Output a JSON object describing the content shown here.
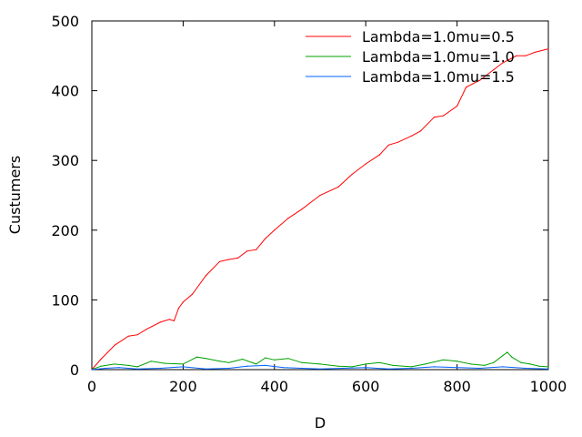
{
  "chart_data": {
    "type": "line",
    "title": "",
    "xlabel": "D",
    "ylabel": "Custumers",
    "xlim": [
      0,
      1000
    ],
    "ylim": [
      0,
      500
    ],
    "xticks": [
      0,
      200,
      400,
      600,
      800,
      1000
    ],
    "yticks": [
      0,
      100,
      200,
      300,
      400,
      500
    ],
    "grid": false,
    "legend_position": "top-right",
    "series": [
      {
        "name": "Lambda=1.0mu=0.5",
        "color": "#ff0000",
        "x": [
          0,
          20,
          50,
          80,
          100,
          120,
          150,
          170,
          180,
          190,
          200,
          220,
          250,
          280,
          300,
          320,
          340,
          360,
          380,
          400,
          430,
          460,
          500,
          540,
          570,
          600,
          630,
          650,
          670,
          700,
          720,
          750,
          770,
          800,
          820,
          850,
          880,
          900,
          930,
          950,
          970,
          1000
        ],
        "y": [
          0,
          15,
          35,
          48,
          50,
          58,
          68,
          72,
          70,
          88,
          97,
          108,
          135,
          155,
          158,
          160,
          170,
          172,
          188,
          200,
          217,
          230,
          250,
          262,
          280,
          295,
          308,
          322,
          326,
          335,
          342,
          362,
          364,
          378,
          405,
          415,
          430,
          440,
          450,
          450,
          455,
          460
        ]
      },
      {
        "name": "Lambda=1.0mu=1.0",
        "color": "#00a000",
        "x": [
          0,
          20,
          50,
          80,
          100,
          130,
          160,
          200,
          230,
          250,
          280,
          300,
          330,
          360,
          380,
          400,
          430,
          460,
          500,
          540,
          570,
          600,
          630,
          660,
          700,
          730,
          770,
          800,
          830,
          860,
          880,
          900,
          910,
          920,
          940,
          960,
          980,
          1000
        ],
        "y": [
          0,
          5,
          8,
          6,
          4,
          12,
          9,
          8,
          18,
          16,
          12,
          10,
          15,
          8,
          17,
          14,
          16,
          10,
          8,
          5,
          4,
          8,
          10,
          6,
          4,
          8,
          14,
          12,
          8,
          6,
          10,
          20,
          25,
          18,
          10,
          8,
          5,
          4
        ]
      },
      {
        "name": "Lambda=1.0mu=1.5",
        "color": "#0060ff",
        "x": [
          0,
          30,
          60,
          100,
          150,
          200,
          250,
          300,
          340,
          380,
          420,
          460,
          500,
          550,
          600,
          650,
          700,
          750,
          800,
          850,
          900,
          950,
          1000
        ],
        "y": [
          0,
          2,
          3,
          1,
          2,
          4,
          1,
          2,
          5,
          6,
          3,
          2,
          1,
          2,
          3,
          1,
          2,
          4,
          3,
          2,
          4,
          2,
          1
        ]
      }
    ]
  }
}
